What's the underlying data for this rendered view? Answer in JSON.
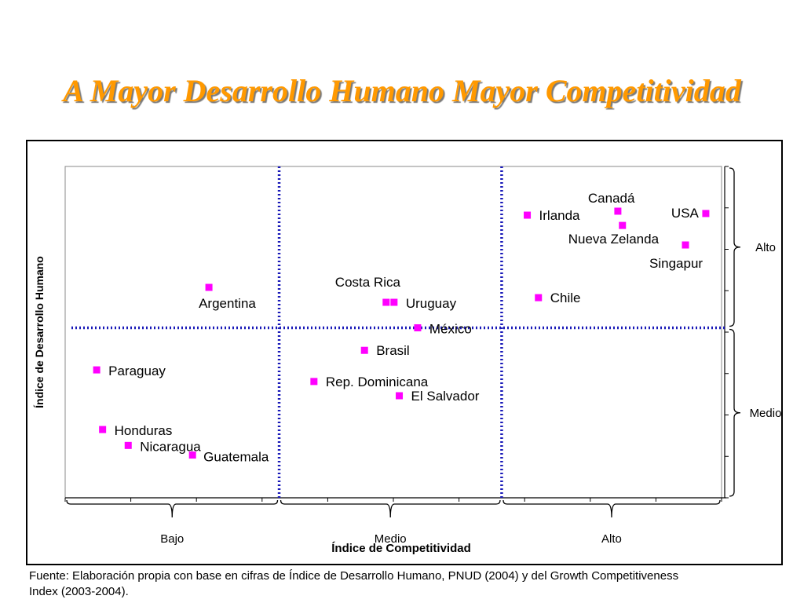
{
  "slide": {
    "title": "A Mayor Desarrollo Humano Mayor Competitividad",
    "footnote": "Fuente: Elaboración propia con base en cifras de Índice de Desarrollo Humano, PNUD (2004) y del Growth Competitiveness Index (2003-2004)."
  },
  "colors": {
    "title": "#ff9900",
    "marker": "#ff00ff",
    "divider": "#1a1ab8",
    "frame": "#000000"
  },
  "chart_data": {
    "type": "scatter",
    "title": "",
    "xlabel": "Índice de Competitividad",
    "ylabel": "Índice de Desarrollo Humano",
    "xlim": [
      0,
      100
    ],
    "ylim": [
      0,
      100
    ],
    "grid": false,
    "x_dividers": [
      32.6,
      66.5
    ],
    "y_divider": 51.3,
    "x_groups": [
      "Bajo",
      "Medio",
      "Alto"
    ],
    "y_groups": [
      "Medio",
      "Alto"
    ],
    "points": [
      {
        "label": "Canadá",
        "x": 84.2,
        "y": 86.5
      },
      {
        "label": "USA",
        "x": 97.6,
        "y": 85.8
      },
      {
        "label": "Irlanda",
        "x": 70.4,
        "y": 85.3
      },
      {
        "label": "Nueva Zelanda",
        "x": 84.9,
        "y": 82.2
      },
      {
        "label": "Singapur",
        "x": 94.5,
        "y": 76.3
      },
      {
        "label": "Chile",
        "x": 72.1,
        "y": 60.4
      },
      {
        "label": "Costa Rica",
        "x": 48.9,
        "y": 59.0
      },
      {
        "label": "Uruguay",
        "x": 50.1,
        "y": 59.0
      },
      {
        "label": "México",
        "x": 53.7,
        "y": 51.3
      },
      {
        "label": "Brasil",
        "x": 45.6,
        "y": 44.5
      },
      {
        "label": "Rep. Dominicana",
        "x": 37.9,
        "y": 35.1
      },
      {
        "label": "El Salvador",
        "x": 50.9,
        "y": 30.8
      },
      {
        "label": "Argentina",
        "x": 21.9,
        "y": 63.5
      },
      {
        "label": "Paraguay",
        "x": 4.8,
        "y": 38.6
      },
      {
        "label": "Honduras",
        "x": 5.7,
        "y": 20.6
      },
      {
        "label": "Nicaragua",
        "x": 9.6,
        "y": 15.8
      },
      {
        "label": "Guatemala",
        "x": 19.4,
        "y": 12.9
      }
    ]
  }
}
